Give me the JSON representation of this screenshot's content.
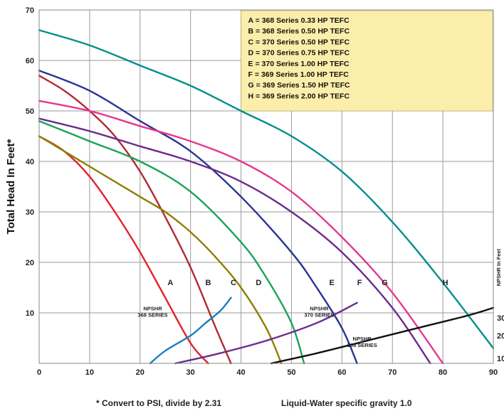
{
  "chart_data": {
    "type": "line",
    "title": "",
    "xlabel": "",
    "ylabel": "Total Head In Feet*",
    "right_axis_label": "NPSHR In Feet",
    "right_axis_ticks": [
      "30",
      "20",
      "10"
    ],
    "xlim": [
      0,
      90
    ],
    "ylim": [
      0,
      70
    ],
    "x_ticks": [
      0,
      10,
      20,
      30,
      40,
      50,
      60,
      70,
      80,
      90
    ],
    "y_ticks": [
      10,
      20,
      30,
      40,
      50,
      60,
      70
    ],
    "grid": true,
    "legend": {
      "placement": "top-right",
      "entries": [
        "A = 368 Series 0.33 HP TEFC",
        "B = 368 Series 0.50 HP TEFC",
        "C = 370 Series 0.50 HP TEFC",
        "D = 370 Series 0.75 HP TEFC",
        "E = 370 Series 1.00 HP TEFC",
        "F = 369 Series 1.00 HP TEFC",
        "G = 369 Series 1.50 HP TEFC",
        "H = 369 Series 2.00 HP TEFC"
      ]
    },
    "series": [
      {
        "name": "A",
        "color": "#e5202a",
        "label_at": [
          26,
          15.5
        ],
        "x": [
          0,
          5,
          10,
          15,
          20,
          25,
          30,
          33.5
        ],
        "y": [
          45,
          42,
          37,
          30,
          22,
          13,
          4,
          0
        ]
      },
      {
        "name": "B",
        "color": "#b02a30",
        "label_at": [
          33.5,
          15.5
        ],
        "x": [
          0,
          5,
          10,
          15,
          20,
          25,
          30,
          35,
          38
        ],
        "y": [
          57,
          54,
          50,
          45,
          38,
          29,
          19,
          7,
          0
        ]
      },
      {
        "name": "C",
        "color": "#8c8000",
        "label_at": [
          38.5,
          15.5
        ],
        "x": [
          0,
          10,
          20,
          25,
          30,
          35,
          40,
          45,
          48
        ],
        "y": [
          45,
          39,
          33,
          30,
          26,
          21,
          15,
          7,
          0
        ]
      },
      {
        "name": "D",
        "color": "#1aa35a",
        "label_at": [
          43.5,
          15.5
        ],
        "x": [
          0,
          10,
          20,
          30,
          40,
          45,
          50,
          52.5
        ],
        "y": [
          48,
          44,
          40,
          34,
          24,
          17,
          8,
          0
        ]
      },
      {
        "name": "E",
        "color": "#283593",
        "label_at": [
          58,
          15.5
        ],
        "x": [
          0,
          10,
          20,
          30,
          40,
          50,
          55,
          60,
          63
        ],
        "y": [
          58,
          54,
          48,
          42,
          33,
          22,
          15,
          7,
          0
        ]
      },
      {
        "name": "F",
        "color": "#6a2c8c",
        "label_at": [
          63.5,
          15.5
        ],
        "x": [
          0,
          10,
          20,
          30,
          40,
          50,
          60,
          70,
          77.5
        ],
        "y": [
          48.5,
          46,
          43,
          40,
          36,
          30,
          22,
          11,
          0
        ]
      },
      {
        "name": "G",
        "color": "#e5388e",
        "label_at": [
          68.5,
          15.5
        ],
        "x": [
          0,
          10,
          20,
          30,
          40,
          50,
          60,
          70,
          80
        ],
        "y": [
          52,
          50,
          47,
          44,
          40,
          34,
          25,
          14,
          0
        ]
      },
      {
        "name": "H",
        "color": "#00908a",
        "label_at": [
          80.5,
          15.5
        ],
        "x": [
          0,
          10,
          20,
          30,
          40,
          50,
          60,
          70,
          80,
          90
        ],
        "y": [
          66,
          63,
          59,
          55,
          50,
          45,
          38,
          28,
          16,
          3
        ]
      }
    ],
    "npshr": [
      {
        "label": [
          "NPSHR",
          "368 SERIES"
        ],
        "color": "#1a7fc0",
        "label_at": [
          22.5,
          10.5
        ],
        "x": [
          22,
          25,
          30,
          33,
          36,
          38
        ],
        "y": [
          0,
          2.5,
          5.5,
          8,
          10.5,
          13
        ]
      },
      {
        "label": [
          "NPSHR",
          "370 SERIES"
        ],
        "color": "#6a2c8c",
        "label_at": [
          55.5,
          10.5
        ],
        "x": [
          27,
          35,
          45,
          55,
          63
        ],
        "y": [
          0,
          1.8,
          4.5,
          8,
          12
        ]
      },
      {
        "label": [
          "NPSHR",
          "369 SERIES"
        ],
        "color": "#111111",
        "label_at": [
          64,
          4.5
        ],
        "x": [
          46,
          55,
          65,
          75,
          85,
          90
        ],
        "y": [
          0,
          2,
          4.5,
          7,
          9.5,
          11
        ]
      }
    ],
    "footnotes": [
      "* Convert to PSI, divide by 2.31",
      "Liquid-Water specific gravity 1.0"
    ]
  }
}
